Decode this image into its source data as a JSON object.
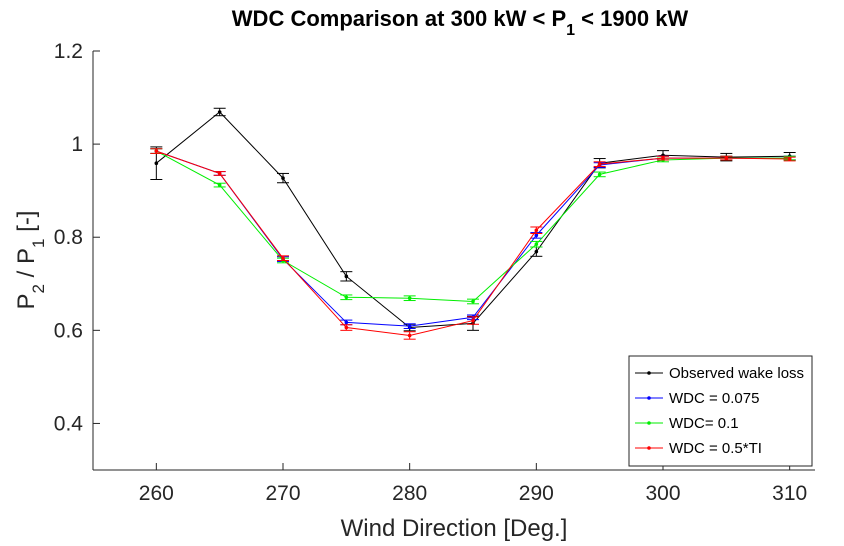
{
  "chart_data": {
    "type": "line",
    "title": [
      "WDC Comparison at 300 kW < P",
      "1",
      " < 1900 kW"
    ],
    "x_label": "Wind Direction [Deg.]",
    "y_label": [
      "P",
      "2",
      " / P",
      "1",
      " [-]"
    ],
    "x": [
      260,
      265,
      270,
      275,
      280,
      285,
      290,
      295,
      300,
      305,
      310
    ],
    "xlim": [
      255,
      312
    ],
    "xticks": [
      260,
      270,
      280,
      290,
      300,
      310
    ],
    "ylim": [
      0.3,
      1.2
    ],
    "yticks": [
      0.4,
      0.6,
      0.8,
      1,
      1.2
    ],
    "legend": "lower right",
    "series": [
      {
        "name": "Observed wake loss",
        "color": "#000000",
        "values": [
          0.959,
          1.069,
          0.927,
          0.716,
          0.606,
          0.615,
          0.769,
          0.959,
          0.976,
          0.972,
          0.974
        ],
        "errors": [
          0.035,
          0.008,
          0.01,
          0.01,
          0.007,
          0.015,
          0.01,
          0.01,
          0.01,
          0.008,
          0.008
        ]
      },
      {
        "name": "WDC = 0.075",
        "color": "#0000ff",
        "values": [
          0.985,
          0.937,
          0.753,
          0.617,
          0.609,
          0.628,
          0.804,
          0.955,
          0.97,
          0.97,
          0.97
        ],
        "errors": [
          0.005,
          0.004,
          0.005,
          0.005,
          0.005,
          0.005,
          0.006,
          0.005,
          0.004,
          0.004,
          0.004
        ]
      },
      {
        "name": "WDC= 0.1",
        "color": "#00ee00",
        "values": [
          0.985,
          0.912,
          0.75,
          0.671,
          0.669,
          0.662,
          0.785,
          0.935,
          0.966,
          0.97,
          0.97
        ],
        "errors": [
          0.005,
          0.004,
          0.005,
          0.005,
          0.005,
          0.005,
          0.006,
          0.005,
          0.004,
          0.004,
          0.004
        ]
      },
      {
        "name": "WDC = 0.5*TI",
        "color": "#ff0000",
        "values": [
          0.985,
          0.937,
          0.755,
          0.606,
          0.589,
          0.621,
          0.815,
          0.957,
          0.97,
          0.97,
          0.968
        ],
        "errors": [
          0.005,
          0.004,
          0.005,
          0.006,
          0.008,
          0.008,
          0.007,
          0.005,
          0.004,
          0.004,
          0.004
        ]
      }
    ]
  }
}
